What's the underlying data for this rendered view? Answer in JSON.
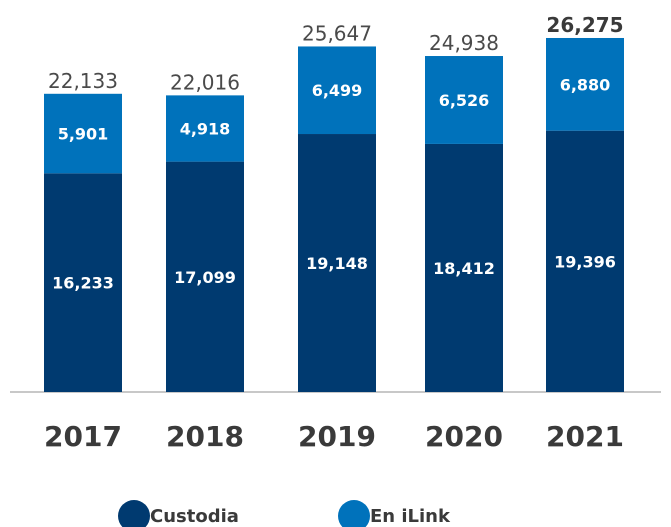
{
  "chart_data": {
    "type": "bar",
    "stacked": true,
    "categories": [
      "2017",
      "2018",
      "2019",
      "2020",
      "2021"
    ],
    "series": [
      {
        "name": "Custodia",
        "values": [
          16233,
          17099,
          19148,
          18412,
          19396
        ],
        "value_labels": [
          "16,233",
          "17,099",
          "19,148",
          "18,412",
          "19,396"
        ],
        "color": "#003a70"
      },
      {
        "name": "En iLink",
        "values": [
          5901,
          4918,
          6499,
          6526,
          6880
        ],
        "value_labels": [
          "5,901",
          "4,918",
          "6,499",
          "6,526",
          "6,880"
        ],
        "color": "#0072bb"
      }
    ],
    "totals": [
      22133,
      22016,
      25647,
      24938,
      26275
    ],
    "total_labels": [
      "22,133",
      "22,016",
      "25,647",
      "24,938",
      "26,275"
    ],
    "highlight_last_total": true,
    "ylim": [
      0,
      26275
    ],
    "grid": false,
    "legend_position": "bottom"
  }
}
